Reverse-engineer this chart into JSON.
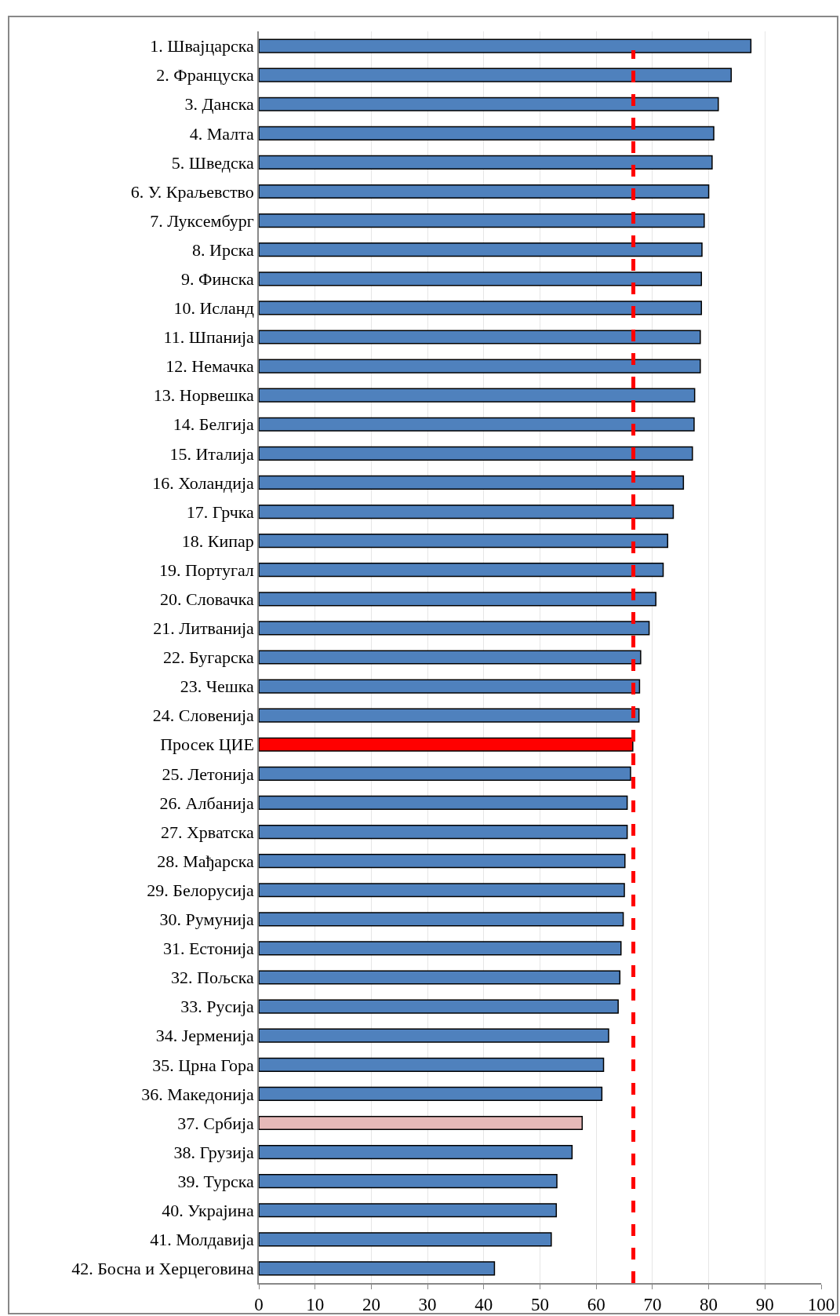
{
  "chart_data": {
    "type": "bar",
    "orientation": "horizontal",
    "categories": [
      "1. Швајцарска",
      "2. Француска",
      "3. Данска",
      "4. Малта",
      "5. Шведска",
      "6. У. Краљевство",
      "7. Луксембург",
      "8. Ирска",
      "9. Финска",
      "10. Исланд",
      "11. Шпанија",
      "12. Немачка",
      "13. Норвешка",
      "14. Белгија",
      "15. Италија",
      "16. Холандија",
      "17. Грчка",
      "18. Кипар",
      "19. Португал",
      "20. Словачка",
      "21. Литванија",
      "22. Бугарска",
      "23. Чешка",
      "24. Словенија",
      "Просек ЦИЕ",
      "25. Летонија",
      "26. Албанија",
      "27. Хрватска",
      "28. Мађарска",
      "29. Белорусија",
      "30. Румунија",
      "31. Естонија",
      "32. Пољска",
      "33. Русија",
      "34. Јерменија",
      "35. Црна Гора",
      "36. Македонија",
      "37. Србија",
      "38. Грузија",
      "39. Турска",
      "40. Украјина",
      "41. Молдавија",
      "42. Босна и Херцеговина"
    ],
    "values": [
      87.5,
      84.0,
      81.7,
      80.9,
      80.6,
      80.0,
      79.2,
      78.8,
      78.7,
      78.7,
      78.5,
      78.5,
      77.5,
      77.4,
      77.1,
      75.5,
      73.7,
      72.7,
      71.9,
      70.6,
      69.4,
      67.9,
      67.7,
      67.6,
      66.5,
      66.1,
      65.5,
      65.5,
      65.1,
      65.0,
      64.8,
      64.4,
      64.2,
      63.9,
      62.2,
      61.3,
      61.0,
      57.5,
      55.7,
      53.0,
      52.9,
      52.0,
      41.9
    ],
    "colors": [
      "#4f81bd",
      "#4f81bd",
      "#4f81bd",
      "#4f81bd",
      "#4f81bd",
      "#4f81bd",
      "#4f81bd",
      "#4f81bd",
      "#4f81bd",
      "#4f81bd",
      "#4f81bd",
      "#4f81bd",
      "#4f81bd",
      "#4f81bd",
      "#4f81bd",
      "#4f81bd",
      "#4f81bd",
      "#4f81bd",
      "#4f81bd",
      "#4f81bd",
      "#4f81bd",
      "#4f81bd",
      "#4f81bd",
      "#4f81bd",
      "#ff0000",
      "#4f81bd",
      "#4f81bd",
      "#4f81bd",
      "#4f81bd",
      "#4f81bd",
      "#4f81bd",
      "#4f81bd",
      "#4f81bd",
      "#4f81bd",
      "#4f81bd",
      "#4f81bd",
      "#4f81bd",
      "#e6b9b8",
      "#4f81bd",
      "#4f81bd",
      "#4f81bd",
      "#4f81bd",
      "#4f81bd"
    ],
    "xlim": [
      0,
      100
    ],
    "xticks": [
      0,
      10,
      20,
      30,
      40,
      50,
      60,
      70,
      80,
      90,
      100
    ],
    "grid": "x",
    "legend": false,
    "ref_lines": [
      {
        "axis": "x",
        "value": 66.6,
        "color": "#ff0000",
        "line_style": "dashed"
      }
    ]
  }
}
